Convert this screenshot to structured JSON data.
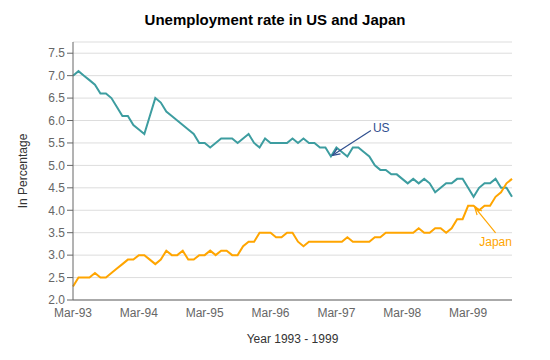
{
  "chart_data": {
    "type": "line",
    "title": "Unemployment rate in US and Japan",
    "xlabel": "Year 1993 - 1999",
    "ylabel": "In Percentage",
    "categories": [
      "Mar-93",
      null,
      null,
      null,
      null,
      null,
      null,
      null,
      null,
      null,
      null,
      null,
      "Mar-94",
      null,
      null,
      null,
      null,
      null,
      null,
      null,
      null,
      null,
      null,
      null,
      "Mar-95",
      null,
      null,
      null,
      null,
      null,
      null,
      null,
      null,
      null,
      null,
      null,
      "Mar-96",
      null,
      null,
      null,
      null,
      null,
      null,
      null,
      null,
      null,
      null,
      null,
      "Mar-97",
      null,
      null,
      null,
      null,
      null,
      null,
      null,
      null,
      null,
      null,
      null,
      "Mar-98",
      null,
      null,
      null,
      null,
      null,
      null,
      null,
      null,
      null,
      null,
      null,
      "Mar-99",
      null,
      null,
      null,
      null,
      null,
      null,
      null,
      null
    ],
    "series": [
      {
        "name": "US",
        "color": "#3d9da0",
        "values": [
          7.0,
          7.1,
          7.0,
          6.9,
          6.8,
          6.6,
          6.6,
          6.5,
          6.3,
          6.1,
          6.1,
          5.9,
          5.8,
          5.7,
          6.1,
          6.5,
          6.4,
          6.2,
          6.1,
          6.0,
          5.9,
          5.8,
          5.7,
          5.5,
          5.5,
          5.4,
          5.5,
          5.6,
          5.6,
          5.6,
          5.5,
          5.6,
          5.7,
          5.5,
          5.4,
          5.6,
          5.5,
          5.5,
          5.5,
          5.5,
          5.6,
          5.5,
          5.6,
          5.5,
          5.5,
          5.4,
          5.4,
          5.2,
          5.4,
          5.3,
          5.2,
          5.4,
          5.4,
          5.3,
          5.2,
          5.0,
          4.9,
          4.9,
          4.8,
          4.8,
          4.7,
          4.6,
          4.7,
          4.6,
          4.7,
          4.6,
          4.4,
          4.5,
          4.6,
          4.6,
          4.7,
          4.7,
          4.5,
          4.3,
          4.5,
          4.6,
          4.6,
          4.7,
          4.5,
          4.5,
          4.3
        ]
      },
      {
        "name": "Japan",
        "color": "#FFA500",
        "values": [
          2.3,
          2.5,
          2.5,
          2.5,
          2.6,
          2.5,
          2.5,
          2.6,
          2.7,
          2.8,
          2.9,
          2.9,
          3.0,
          3.0,
          2.9,
          2.8,
          2.9,
          3.1,
          3.0,
          3.0,
          3.1,
          2.9,
          2.9,
          3.0,
          3.0,
          3.1,
          3.0,
          3.1,
          3.1,
          3.0,
          3.0,
          3.2,
          3.3,
          3.3,
          3.5,
          3.5,
          3.5,
          3.4,
          3.4,
          3.5,
          3.5,
          3.3,
          3.2,
          3.3,
          3.3,
          3.3,
          3.3,
          3.3,
          3.3,
          3.3,
          3.4,
          3.3,
          3.3,
          3.3,
          3.3,
          3.4,
          3.4,
          3.5,
          3.5,
          3.5,
          3.5,
          3.5,
          3.5,
          3.6,
          3.5,
          3.5,
          3.6,
          3.6,
          3.5,
          3.6,
          3.8,
          3.8,
          4.1,
          4.1,
          4.0,
          4.1,
          4.1,
          4.3,
          4.4,
          4.6,
          4.7
        ]
      }
    ],
    "ylim": [
      2.0,
      7.75
    ],
    "yticks": [
      {
        "value": 2.0,
        "label": "2.0"
      },
      {
        "value": 2.5,
        "label": "2.5"
      },
      {
        "value": 3.0,
        "label": "3.0"
      },
      {
        "value": 3.5,
        "label": "3.5"
      },
      {
        "value": 4.0,
        "label": "4.0"
      },
      {
        "value": 4.5,
        "label": "4.5"
      },
      {
        "value": 5.0,
        "label": "5.0"
      },
      {
        "value": 5.5,
        "label": "5.5"
      },
      {
        "value": 6.0,
        "label": "6.0"
      },
      {
        "value": 6.5,
        "label": "6.5"
      },
      {
        "value": 7.0,
        "label": "7.0"
      },
      {
        "value": 7.5,
        "label": "7.5"
      }
    ],
    "grid": true,
    "annotations": [
      {
        "text": "US",
        "x": 47,
        "y": 5.2,
        "color": "#2F4F8F"
      },
      {
        "text": "Japan",
        "x": 73,
        "y": 4.1,
        "color": "#FFA500"
      }
    ]
  }
}
